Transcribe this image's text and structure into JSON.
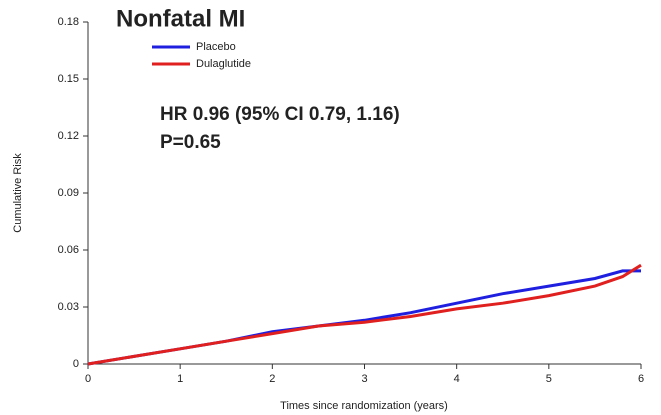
{
  "chart_data": {
    "type": "line",
    "title": "Nonfatal MI",
    "annotations": [
      "HR 0.96 (95% CI 0.79, 1.16)",
      "P=0.65"
    ],
    "x_label": "Times since randomization (years)",
    "y_label": "Cumulative Risk",
    "x": [
      0,
      0.5,
      1,
      1.5,
      2,
      2.5,
      3,
      3.5,
      4,
      4.5,
      5,
      5.5,
      5.8,
      6
    ],
    "series": [
      {
        "name": "Placebo",
        "color": "#1f1fe0",
        "values": [
          0,
          0.004,
          0.008,
          0.012,
          0.017,
          0.02,
          0.023,
          0.027,
          0.032,
          0.037,
          0.041,
          0.045,
          0.049,
          0.049
        ]
      },
      {
        "name": "Dulaglutide",
        "color": "#e01f1f",
        "values": [
          0,
          0.004,
          0.008,
          0.012,
          0.016,
          0.02,
          0.022,
          0.025,
          0.029,
          0.032,
          0.036,
          0.041,
          0.046,
          0.052
        ]
      }
    ],
    "xlim": [
      0,
      6
    ],
    "xticks": [
      0,
      1,
      2,
      3,
      4,
      5,
      6
    ],
    "ylim": [
      0,
      0.18
    ],
    "yticks": [
      0,
      0.03,
      0.06,
      0.09,
      0.12,
      0.15,
      0.18
    ],
    "legend": "top-left"
  }
}
